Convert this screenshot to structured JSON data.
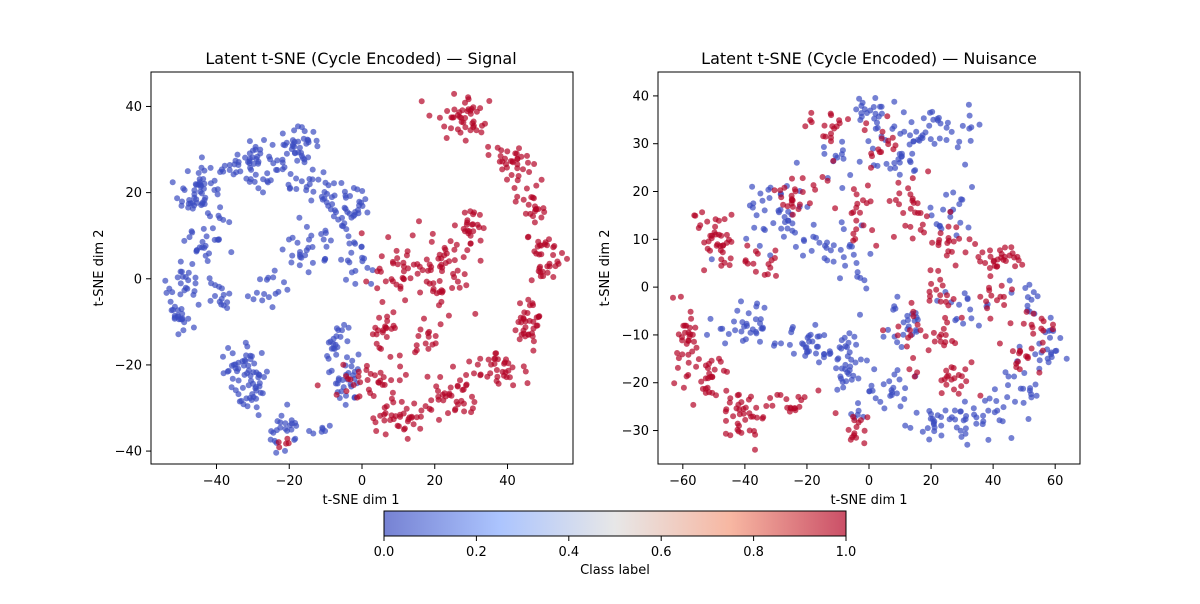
{
  "chart_data": [
    {
      "type": "scatter",
      "title": "Latent t-SNE (Cycle Encoded) — Signal",
      "xlabel": "t-SNE dim 1",
      "ylabel": "t-SNE dim 2",
      "xlim": [
        -58,
        58
      ],
      "ylim": [
        -43,
        48
      ],
      "xticks": [
        -40,
        -20,
        0,
        20,
        40
      ],
      "yticks": [
        -40,
        -20,
        0,
        20,
        40
      ],
      "grid": false,
      "color_encoding": "class label (0 = blue, 1 = red)",
      "clusters": [
        {
          "label": 0,
          "cx": -44,
          "cy": 20,
          "spread": [
            4,
            5
          ],
          "n": 60
        },
        {
          "label": 0,
          "cx": -30,
          "cy": 27,
          "spread": [
            5,
            4
          ],
          "n": 55
        },
        {
          "label": 0,
          "cx": -18,
          "cy": 30,
          "spread": [
            4,
            3
          ],
          "n": 40
        },
        {
          "label": 0,
          "cx": -10,
          "cy": 21,
          "spread": [
            6,
            2
          ],
          "n": 30
        },
        {
          "label": 0,
          "cx": -3,
          "cy": 15,
          "spread": [
            5,
            3
          ],
          "n": 30
        },
        {
          "label": 0,
          "cx": -15,
          "cy": 7,
          "spread": [
            5,
            3
          ],
          "n": 30
        },
        {
          "label": 0,
          "cx": -2,
          "cy": 4,
          "spread": [
            3,
            4
          ],
          "n": 20
        },
        {
          "label": 0,
          "cx": -42,
          "cy": 8,
          "spread": [
            4,
            3
          ],
          "n": 20
        },
        {
          "label": 0,
          "cx": -47,
          "cy": 0,
          "spread": [
            3,
            3
          ],
          "n": 20
        },
        {
          "label": 0,
          "cx": -51,
          "cy": -7,
          "spread": [
            2,
            3
          ],
          "n": 25
        },
        {
          "label": 0,
          "cx": -38,
          "cy": -4,
          "spread": [
            3,
            2
          ],
          "n": 15
        },
        {
          "label": 0,
          "cx": -25,
          "cy": -3,
          "spread": [
            3,
            3
          ],
          "n": 15
        },
        {
          "label": 0,
          "cx": -33,
          "cy": -21,
          "spread": [
            4,
            3
          ],
          "n": 40
        },
        {
          "label": 0,
          "cx": -30,
          "cy": -27,
          "spread": [
            3,
            3
          ],
          "n": 25
        },
        {
          "label": 0,
          "cx": -21,
          "cy": -35,
          "spread": [
            3,
            3
          ],
          "n": 25
        },
        {
          "label": 0,
          "cx": -8,
          "cy": -15,
          "spread": [
            2,
            4
          ],
          "n": 20
        },
        {
          "label": 0,
          "cx": -4,
          "cy": -23,
          "spread": [
            3,
            4
          ],
          "n": 30
        },
        {
          "label": 0,
          "cx": -11,
          "cy": -35,
          "spread": [
            2,
            2
          ],
          "n": 6
        },
        {
          "label": 1,
          "cx": 28,
          "cy": 38,
          "spread": [
            5,
            3
          ],
          "n": 45
        },
        {
          "label": 1,
          "cx": 40,
          "cy": 28,
          "spread": [
            4,
            3
          ],
          "n": 30
        },
        {
          "label": 1,
          "cx": 47,
          "cy": 18,
          "spread": [
            3,
            4
          ],
          "n": 25
        },
        {
          "label": 1,
          "cx": 50,
          "cy": 5,
          "spread": [
            3,
            4
          ],
          "n": 35
        },
        {
          "label": 1,
          "cx": 46,
          "cy": -10,
          "spread": [
            3,
            4
          ],
          "n": 35
        },
        {
          "label": 1,
          "cx": 38,
          "cy": -21,
          "spread": [
            5,
            3
          ],
          "n": 35
        },
        {
          "label": 1,
          "cx": 25,
          "cy": -28,
          "spread": [
            5,
            3
          ],
          "n": 40
        },
        {
          "label": 1,
          "cx": 10,
          "cy": -33,
          "spread": [
            5,
            3
          ],
          "n": 35
        },
        {
          "label": 1,
          "cx": 3,
          "cy": -24,
          "spread": [
            6,
            3
          ],
          "n": 35
        },
        {
          "label": 1,
          "cx": 5,
          "cy": -13,
          "spread": [
            3,
            3
          ],
          "n": 20
        },
        {
          "label": 1,
          "cx": 10,
          "cy": 0,
          "spread": [
            4,
            5
          ],
          "n": 35
        },
        {
          "label": 1,
          "cx": 22,
          "cy": 4,
          "spread": [
            5,
            4
          ],
          "n": 40
        },
        {
          "label": 1,
          "cx": 30,
          "cy": 12,
          "spread": [
            3,
            3
          ],
          "n": 25
        },
        {
          "label": 1,
          "cx": 18,
          "cy": -15,
          "spread": [
            3,
            3
          ],
          "n": 15
        },
        {
          "label": 1,
          "cx": 23,
          "cy": -4,
          "spread": [
            3,
            3
          ],
          "n": 15
        },
        {
          "label": 1,
          "cx": -21,
          "cy": -38,
          "spread": [
            1,
            1
          ],
          "n": 5
        }
      ]
    },
    {
      "type": "scatter",
      "title": "Latent t-SNE (Cycle Encoded) — Nuisance",
      "xlabel": "t-SNE dim 1",
      "ylabel": "t-SNE dim 2",
      "xlim": [
        -68,
        68
      ],
      "ylim": [
        -37,
        45
      ],
      "xticks": [
        -60,
        -40,
        -20,
        0,
        20,
        40,
        60
      ],
      "yticks": [
        -30,
        -20,
        -10,
        0,
        10,
        20,
        30,
        40
      ],
      "grid": false,
      "color_encoding": "class label (0 = blue, 1 = red)",
      "clusters": [
        {
          "label": 0,
          "cx": 0,
          "cy": 37,
          "spread": [
            4,
            2
          ],
          "n": 20
        },
        {
          "label": 0,
          "cx": 20,
          "cy": 33,
          "spread": [
            10,
            3
          ],
          "n": 45
        },
        {
          "label": 0,
          "cx": 10,
          "cy": 27,
          "spread": [
            6,
            3
          ],
          "n": 20
        },
        {
          "label": 0,
          "cx": -10,
          "cy": 27,
          "spread": [
            5,
            3
          ],
          "n": 15
        },
        {
          "label": 0,
          "cx": -30,
          "cy": 15,
          "spread": [
            8,
            5
          ],
          "n": 40
        },
        {
          "label": 0,
          "cx": -15,
          "cy": 9,
          "spread": [
            5,
            4
          ],
          "n": 20
        },
        {
          "label": 0,
          "cx": -5,
          "cy": 5,
          "spread": [
            3,
            4
          ],
          "n": 15
        },
        {
          "label": 0,
          "cx": 25,
          "cy": 17,
          "spread": [
            6,
            4
          ],
          "n": 20
        },
        {
          "label": 0,
          "cx": -38,
          "cy": -8,
          "spread": [
            8,
            3
          ],
          "n": 35
        },
        {
          "label": 0,
          "cx": -20,
          "cy": -12,
          "spread": [
            6,
            3
          ],
          "n": 30
        },
        {
          "label": 0,
          "cx": -8,
          "cy": -16,
          "spread": [
            5,
            4
          ],
          "n": 35
        },
        {
          "label": 0,
          "cx": 5,
          "cy": -21,
          "spread": [
            5,
            3
          ],
          "n": 25
        },
        {
          "label": 0,
          "cx": 10,
          "cy": -8,
          "spread": [
            6,
            3
          ],
          "n": 25
        },
        {
          "label": 0,
          "cx": 25,
          "cy": -28,
          "spread": [
            8,
            2
          ],
          "n": 35
        },
        {
          "label": 0,
          "cx": 38,
          "cy": -27,
          "spread": [
            5,
            3
          ],
          "n": 20
        },
        {
          "label": 0,
          "cx": 50,
          "cy": -20,
          "spread": [
            4,
            3
          ],
          "n": 20
        },
        {
          "label": 0,
          "cx": 58,
          "cy": -12,
          "spread": [
            3,
            4
          ],
          "n": 20
        },
        {
          "label": 0,
          "cx": 30,
          "cy": -3,
          "spread": [
            5,
            3
          ],
          "n": 15
        },
        {
          "label": 0,
          "cx": 50,
          "cy": -3,
          "spread": [
            4,
            3
          ],
          "n": 12
        },
        {
          "label": 0,
          "cx": -5,
          "cy": -28,
          "spread": [
            2,
            2
          ],
          "n": 5
        },
        {
          "label": 1,
          "cx": -50,
          "cy": 10,
          "spread": [
            5,
            4
          ],
          "n": 40
        },
        {
          "label": 1,
          "cx": -60,
          "cy": -10,
          "spread": [
            3,
            4
          ],
          "n": 30
        },
        {
          "label": 1,
          "cx": -52,
          "cy": -20,
          "spread": [
            4,
            4
          ],
          "n": 30
        },
        {
          "label": 1,
          "cx": -40,
          "cy": -27,
          "spread": [
            6,
            3
          ],
          "n": 40
        },
        {
          "label": 1,
          "cx": -25,
          "cy": -25,
          "spread": [
            4,
            2
          ],
          "n": 15
        },
        {
          "label": 1,
          "cx": -12,
          "cy": 33,
          "spread": [
            5,
            3
          ],
          "n": 20
        },
        {
          "label": 1,
          "cx": 5,
          "cy": 30,
          "spread": [
            4,
            3
          ],
          "n": 15
        },
        {
          "label": 1,
          "cx": -25,
          "cy": 20,
          "spread": [
            5,
            3
          ],
          "n": 25
        },
        {
          "label": 1,
          "cx": -3,
          "cy": 15,
          "spread": [
            4,
            4
          ],
          "n": 20
        },
        {
          "label": 1,
          "cx": 12,
          "cy": 17,
          "spread": [
            5,
            4
          ],
          "n": 25
        },
        {
          "label": 1,
          "cx": 25,
          "cy": 10,
          "spread": [
            4,
            4
          ],
          "n": 20
        },
        {
          "label": 1,
          "cx": 42,
          "cy": 6,
          "spread": [
            5,
            2
          ],
          "n": 30
        },
        {
          "label": 1,
          "cx": 22,
          "cy": 0,
          "spread": [
            3,
            3
          ],
          "n": 15
        },
        {
          "label": 1,
          "cx": 40,
          "cy": -3,
          "spread": [
            4,
            3
          ],
          "n": 15
        },
        {
          "label": 1,
          "cx": 15,
          "cy": -12,
          "spread": [
            4,
            4
          ],
          "n": 20
        },
        {
          "label": 1,
          "cx": 30,
          "cy": -20,
          "spread": [
            5,
            3
          ],
          "n": 20
        },
        {
          "label": 1,
          "cx": 50,
          "cy": -14,
          "spread": [
            5,
            3
          ],
          "n": 15
        },
        {
          "label": 1,
          "cx": 55,
          "cy": -8,
          "spread": [
            4,
            2
          ],
          "n": 12
        },
        {
          "label": 1,
          "cx": -5,
          "cy": -30,
          "spread": [
            3,
            3
          ],
          "n": 15
        },
        {
          "label": 1,
          "cx": -35,
          "cy": 5,
          "spread": [
            4,
            3
          ],
          "n": 15
        },
        {
          "label": 1,
          "cx": 25,
          "cy": -10,
          "spread": [
            4,
            2
          ],
          "n": 12
        }
      ]
    }
  ],
  "colorbar": {
    "label": "Class label",
    "ticks": [
      "0.0",
      "0.2",
      "0.4",
      "0.6",
      "0.8",
      "1.0"
    ],
    "min": 0,
    "max": 1,
    "colormap": "coolwarm",
    "low_color": "#3b4cc0",
    "mid_color": "#dddddd",
    "high_color": "#b40426"
  }
}
